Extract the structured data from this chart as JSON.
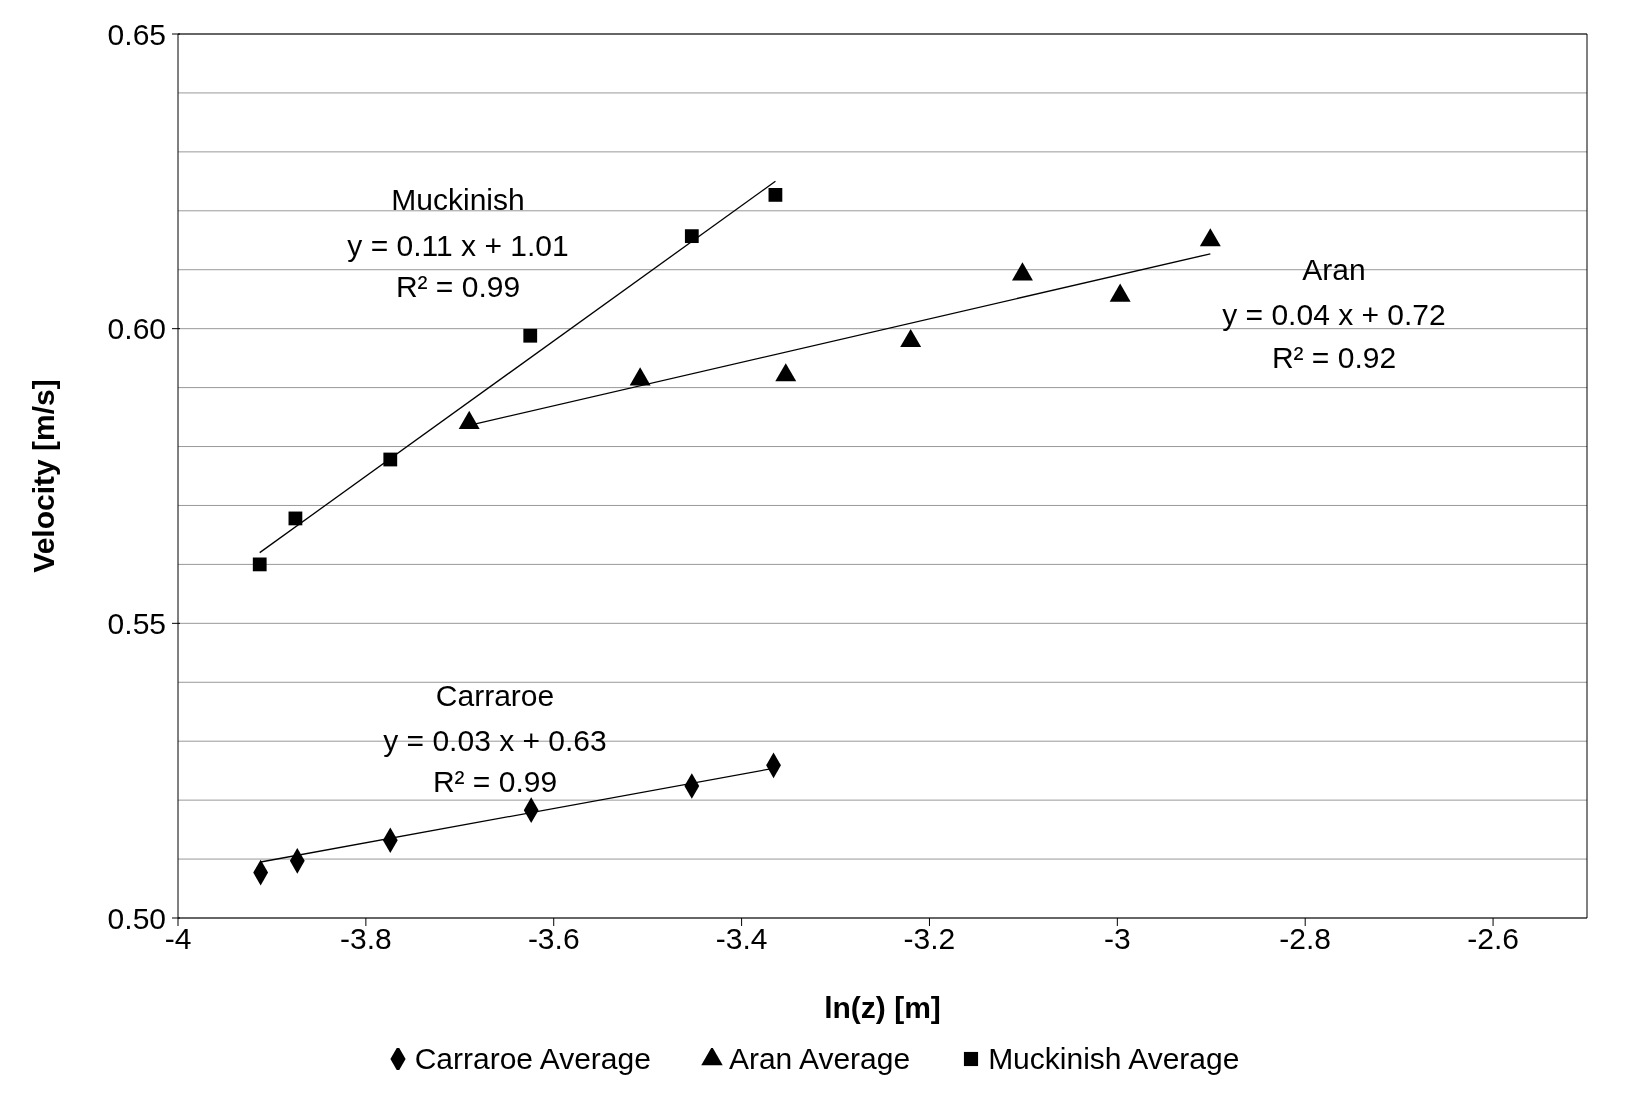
{
  "chart_data": {
    "type": "scatter",
    "xlabel": "ln(z) [m]",
    "ylabel": "Velocity  [m/s]",
    "xlim": [
      -4,
      -2.5
    ],
    "xticks": [
      -4,
      -3.8,
      -3.6,
      -3.4,
      -3.2,
      -3,
      -2.8,
      -2.6
    ],
    "ylim": [
      0.5,
      0.65
    ],
    "yticks": [
      {
        "value": 0.5,
        "label": "0.50"
      },
      {
        "value": 0.51,
        "label": null
      },
      {
        "value": 0.52,
        "label": null
      },
      {
        "value": 0.53,
        "label": null
      },
      {
        "value": 0.54,
        "label": null
      },
      {
        "value": 0.55,
        "label": "0.55"
      },
      {
        "value": 0.56,
        "label": null
      },
      {
        "value": 0.57,
        "label": null
      },
      {
        "value": 0.58,
        "label": null
      },
      {
        "value": 0.59,
        "label": null
      },
      {
        "value": 0.6,
        "label": "0.60"
      },
      {
        "value": 0.61,
        "label": null
      },
      {
        "value": 0.62,
        "label": null
      },
      {
        "value": 0.63,
        "label": null
      },
      {
        "value": 0.64,
        "label": null
      },
      {
        "value": 0.65,
        "label": "0.65"
      }
    ],
    "grid": "y",
    "legend": "bottom",
    "series": [
      {
        "name": "Carraroe Average",
        "marker": "diamond",
        "color": "#000000",
        "x": [
          -3.912,
          -3.873,
          -3.774,
          -3.624,
          -3.453,
          -3.366
        ],
        "values": [
          0.5077,
          0.5097,
          0.5132,
          0.5183,
          0.5224,
          0.5259
        ]
      },
      {
        "name": "Aran Average",
        "marker": "triangle",
        "color": "#000000",
        "x": [
          -3.69,
          -3.508,
          -3.353,
          -3.22,
          -3.101,
          -2.997,
          -2.901
        ],
        "values": [
          0.584,
          0.5914,
          0.5921,
          0.5979,
          0.6092,
          0.6056,
          0.615
        ]
      },
      {
        "name": "Muckinish Average",
        "marker": "square",
        "color": "#000000",
        "x": [
          -3.913,
          -3.875,
          -3.774,
          -3.625,
          -3.453,
          -3.364
        ],
        "values": [
          0.56,
          0.5678,
          0.5778,
          0.5988,
          0.6157,
          0.6227
        ]
      },
      {
        "type": "line",
        "marker": "none",
        "color": "#000000",
        "x": [
          -3.912,
          -3.366
        ],
        "values": [
          0.5095,
          0.5254
        ]
      },
      {
        "type": "line",
        "marker": "none",
        "color": "#000000",
        "x": [
          -3.69,
          -2.901
        ],
        "values": [
          0.5836,
          0.6127
        ]
      },
      {
        "type": "line",
        "marker": "none",
        "color": "#000000",
        "x": [
          -3.913,
          -3.364
        ],
        "values": [
          0.562,
          0.625
        ]
      }
    ],
    "annotations": [
      "Muckinish",
      "y = 0.11 x + 1.01",
      "R² = 0.99",
      "Aran",
      "y = 0.04 x + 0.72",
      "R² = 0.92",
      "Carraroe",
      "y = 0.03 x + 0.63",
      "R² = 0.99"
    ]
  }
}
